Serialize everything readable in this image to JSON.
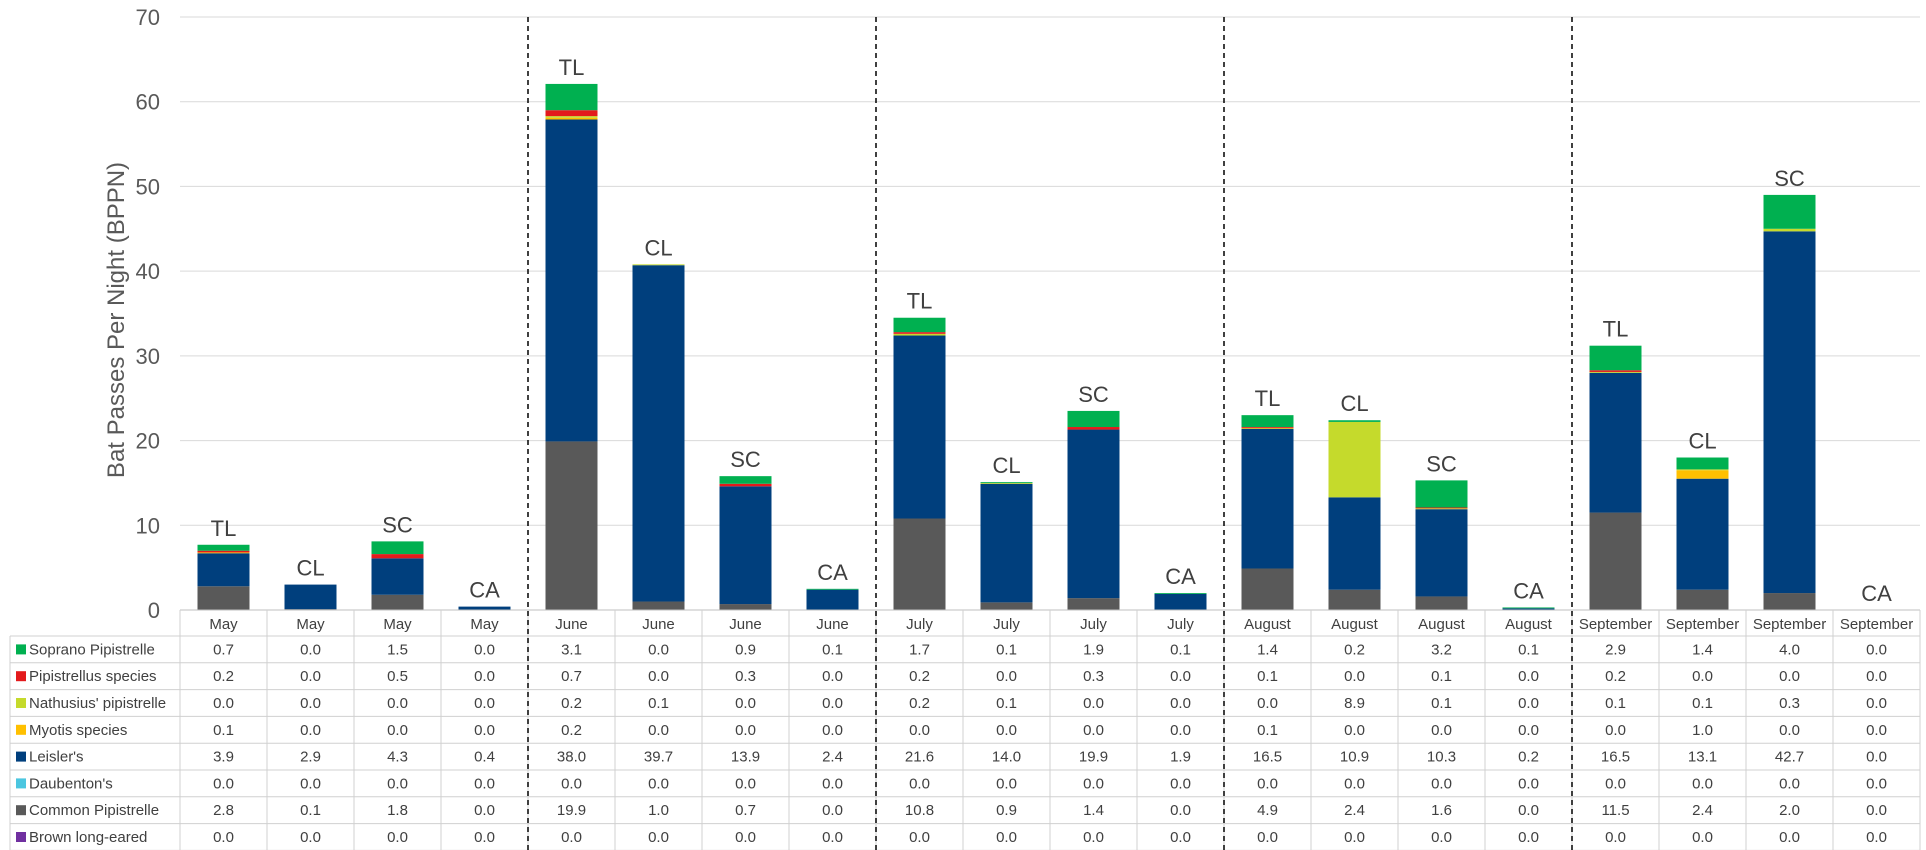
{
  "chart_data": {
    "type": "bar",
    "stacked": true,
    "ylabel": "Bat Passes Per Night (BPPN)",
    "ylim": [
      0,
      70
    ],
    "yticks": [
      "0",
      "10",
      "20",
      "30",
      "40",
      "50",
      "60",
      "70"
    ],
    "grid": true,
    "categories": [
      "May",
      "May",
      "May",
      "May",
      "June",
      "June",
      "June",
      "June",
      "July",
      "July",
      "July",
      "July",
      "August",
      "August",
      "August",
      "August",
      "September",
      "September",
      "September",
      "September"
    ],
    "bar_labels": [
      "TL",
      "CL",
      "SC",
      "CA",
      "TL",
      "CL",
      "SC",
      "CA",
      "TL",
      "CL",
      "SC",
      "CA",
      "TL",
      "CL",
      "SC",
      "CA",
      "TL",
      "CL",
      "SC",
      "CA"
    ],
    "group_dividers_after": [
      4,
      8,
      12,
      16
    ],
    "series": [
      {
        "name": "Brown long-eared",
        "color": "#7030a0",
        "values": [
          "0.0",
          "0.0",
          "0.0",
          "0.0",
          "0.0",
          "0.0",
          "0.0",
          "0.0",
          "0.0",
          "0.0",
          "0.0",
          "0.0",
          "0.0",
          "0.0",
          "0.0",
          "0.0",
          "0.0",
          "0.0",
          "0.0",
          "0.0"
        ]
      },
      {
        "name": "Common Pipistrelle",
        "color": "#595959",
        "values": [
          "2.8",
          "0.1",
          "1.8",
          "0.0",
          "19.9",
          "1.0",
          "0.7",
          "0.0",
          "10.8",
          "0.9",
          "1.4",
          "0.0",
          "4.9",
          "2.4",
          "1.6",
          "0.0",
          "11.5",
          "2.4",
          "2.0",
          "0.0"
        ]
      },
      {
        "name": "Daubenton's",
        "color": "#4bc6e0",
        "values": [
          "0.0",
          "0.0",
          "0.0",
          "0.0",
          "0.0",
          "0.0",
          "0.0",
          "0.0",
          "0.0",
          "0.0",
          "0.0",
          "0.0",
          "0.0",
          "0.0",
          "0.0",
          "0.0",
          "0.0",
          "0.0",
          "0.0",
          "0.0"
        ]
      },
      {
        "name": "Leisler's",
        "color": "#003f7d",
        "values": [
          "3.9",
          "2.9",
          "4.3",
          "0.4",
          "38.0",
          "39.7",
          "13.9",
          "2.4",
          "21.6",
          "14.0",
          "19.9",
          "1.9",
          "16.5",
          "10.9",
          "10.3",
          "0.2",
          "16.5",
          "13.1",
          "42.7",
          "0.0"
        ]
      },
      {
        "name": "Myotis species",
        "color": "#ffc000",
        "values": [
          "0.1",
          "0.0",
          "0.0",
          "0.0",
          "0.2",
          "0.0",
          "0.0",
          "0.0",
          "0.0",
          "0.0",
          "0.0",
          "0.0",
          "0.1",
          "0.0",
          "0.0",
          "0.0",
          "0.0",
          "1.0",
          "0.0",
          "0.0"
        ]
      },
      {
        "name": "Nathusius' pipistrelle",
        "color": "#c5da2c",
        "values": [
          "0.0",
          "0.0",
          "0.0",
          "0.0",
          "0.2",
          "0.1",
          "0.0",
          "0.0",
          "0.2",
          "0.1",
          "0.0",
          "0.0",
          "0.0",
          "8.9",
          "0.1",
          "0.0",
          "0.1",
          "0.1",
          "0.3",
          "0.0"
        ]
      },
      {
        "name": "Pipistrellus species",
        "color": "#e31a1c",
        "values": [
          "0.2",
          "0.0",
          "0.5",
          "0.0",
          "0.7",
          "0.0",
          "0.3",
          "0.0",
          "0.2",
          "0.0",
          "0.3",
          "0.0",
          "0.1",
          "0.0",
          "0.1",
          "0.0",
          "0.2",
          "0.0",
          "0.0",
          "0.0"
        ]
      },
      {
        "name": "Soprano Pipistrelle",
        "color": "#00b050",
        "values": [
          "0.7",
          "0.0",
          "1.5",
          "0.0",
          "3.1",
          "0.0",
          "0.9",
          "0.1",
          "1.7",
          "0.1",
          "1.9",
          "0.1",
          "1.4",
          "0.2",
          "3.2",
          "0.1",
          "2.9",
          "1.4",
          "4.0",
          "0.0"
        ]
      }
    ],
    "table_row_order": [
      "Soprano Pipistrelle",
      "Pipistrellus species",
      "Nathusius' pipistrelle",
      "Myotis species",
      "Leisler's",
      "Daubenton's",
      "Common Pipistrelle",
      "Brown long-eared"
    ]
  }
}
